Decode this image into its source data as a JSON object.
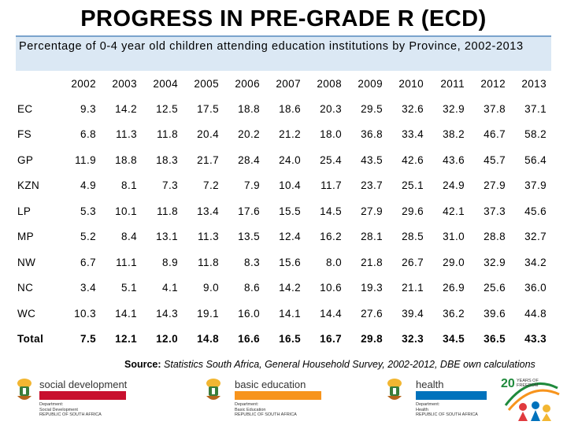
{
  "title": "PROGRESS IN PRE-GRADE R (ECD)",
  "subtitle": "Percentage of 0-4 year old children attending education institutions by Province, 2002-2013",
  "table": {
    "years": [
      "2002",
      "2003",
      "2004",
      "2005",
      "2006",
      "2007",
      "2008",
      "2009",
      "2010",
      "2011",
      "2012",
      "2013"
    ],
    "rows": [
      {
        "label": "EC",
        "values": [
          "9.3",
          "14.2",
          "12.5",
          "17.5",
          "18.8",
          "18.6",
          "20.3",
          "29.5",
          "32.6",
          "32.9",
          "37.8",
          "37.1"
        ]
      },
      {
        "label": "FS",
        "values": [
          "6.8",
          "11.3",
          "11.8",
          "20.4",
          "20.2",
          "21.2",
          "18.0",
          "36.8",
          "33.4",
          "38.2",
          "46.7",
          "58.2"
        ]
      },
      {
        "label": "GP",
        "values": [
          "11.9",
          "18.8",
          "18.3",
          "21.7",
          "28.4",
          "24.0",
          "25.4",
          "43.5",
          "42.6",
          "43.6",
          "45.7",
          "56.4"
        ]
      },
      {
        "label": "KZN",
        "values": [
          "4.9",
          "8.1",
          "7.3",
          "7.2",
          "7.9",
          "10.4",
          "11.7",
          "23.7",
          "25.1",
          "24.9",
          "27.9",
          "37.9"
        ]
      },
      {
        "label": "LP",
        "values": [
          "5.3",
          "10.1",
          "11.8",
          "13.4",
          "17.6",
          "15.5",
          "14.5",
          "27.9",
          "29.6",
          "42.1",
          "37.3",
          "45.6"
        ]
      },
      {
        "label": "MP",
        "values": [
          "5.2",
          "8.4",
          "13.1",
          "11.3",
          "13.5",
          "12.4",
          "16.2",
          "28.1",
          "28.5",
          "31.0",
          "28.8",
          "32.7"
        ]
      },
      {
        "label": "NW",
        "values": [
          "6.7",
          "11.1",
          "8.9",
          "11.8",
          "8.3",
          "15.6",
          "8.0",
          "21.8",
          "26.7",
          "29.0",
          "32.9",
          "34.2"
        ]
      },
      {
        "label": "NC",
        "values": [
          "3.4",
          "5.1",
          "4.1",
          "9.0",
          "8.6",
          "14.2",
          "10.6",
          "19.3",
          "21.1",
          "26.9",
          "25.6",
          "36.0"
        ]
      },
      {
        "label": "WC",
        "values": [
          "10.3",
          "14.1",
          "14.3",
          "19.1",
          "16.0",
          "14.1",
          "14.4",
          "27.6",
          "39.4",
          "36.2",
          "39.6",
          "44.8"
        ]
      },
      {
        "label": "Total",
        "values": [
          "7.5",
          "12.1",
          "12.0",
          "14.8",
          "16.6",
          "16.5",
          "16.7",
          "29.8",
          "32.3",
          "34.5",
          "36.5",
          "43.3"
        ]
      }
    ]
  },
  "source": {
    "label": "Source:",
    "text": "Statistics South Africa, General Household Survey, 2002-2012, DBE own calculations"
  },
  "logos": {
    "social": {
      "name": "social development",
      "lines": [
        "Department:",
        "Social Development",
        "REPUBLIC OF SOUTH AFRICA"
      ],
      "color": "#c8102e"
    },
    "education": {
      "name": "basic education",
      "lines": [
        "Department:",
        "Basic Education",
        "REPUBLIC OF SOUTH AFRICA"
      ],
      "color": "#f7941d"
    },
    "health": {
      "name": "health",
      "lines": [
        "Department:",
        "Health",
        "REPUBLIC OF SOUTH AFRICA"
      ],
      "color": "#0072bc"
    },
    "freedom": {
      "number": "20",
      "line1": "YEARS OF",
      "line2": "FREEDOM"
    }
  }
}
